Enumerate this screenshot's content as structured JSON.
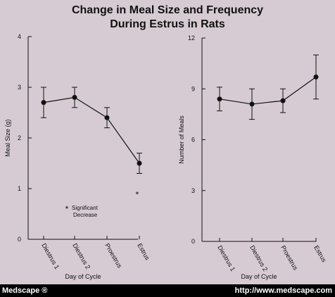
{
  "figure": {
    "title_line1": "Change in Meal Size and Frequency",
    "title_line2": "During Estrus in Rats",
    "footer_left": "Medscape ®",
    "footer_right": "http://www.medscape.com"
  },
  "colors": {
    "background": "#d6cbd2",
    "ink": "#111111",
    "footer_bg": "#000000",
    "footer_text": "#ffffff"
  },
  "chart_data": [
    {
      "type": "line",
      "categories": [
        "Diestrus 1",
        "Diestrus 2",
        "Proestrus",
        "Estrus"
      ],
      "values": [
        2.7,
        2.8,
        2.4,
        1.5
      ],
      "error_low": [
        2.4,
        2.6,
        2.2,
        1.3
      ],
      "error_high": [
        3.0,
        3.0,
        2.6,
        1.7
      ],
      "xlabel": "Day of Cycle",
      "ylabel": "Meal Size (g)",
      "ylim": [
        0,
        4
      ],
      "yticks": [
        "0",
        "1",
        "2",
        "3",
        "4"
      ],
      "significance_marker": "*",
      "significance_category": "Estrus",
      "annotation": {
        "symbol": "*",
        "line1": "Significant",
        "line2": "Decrease"
      },
      "grid": false,
      "legend": "none"
    },
    {
      "type": "line",
      "categories": [
        "Diestrus 1",
        "Diestrus 2",
        "Proestrus",
        "Estrus"
      ],
      "values": [
        8.4,
        8.1,
        8.3,
        9.7
      ],
      "error_low": [
        7.7,
        7.2,
        7.6,
        8.4
      ],
      "error_high": [
        9.1,
        9.0,
        9.0,
        11.0
      ],
      "xlabel": "Day of Cycle",
      "ylabel": "Number of Meals",
      "ylim": [
        0,
        12
      ],
      "yticks": [
        "0",
        "3",
        "6",
        "9",
        "12"
      ],
      "grid": false,
      "legend": "none"
    }
  ]
}
